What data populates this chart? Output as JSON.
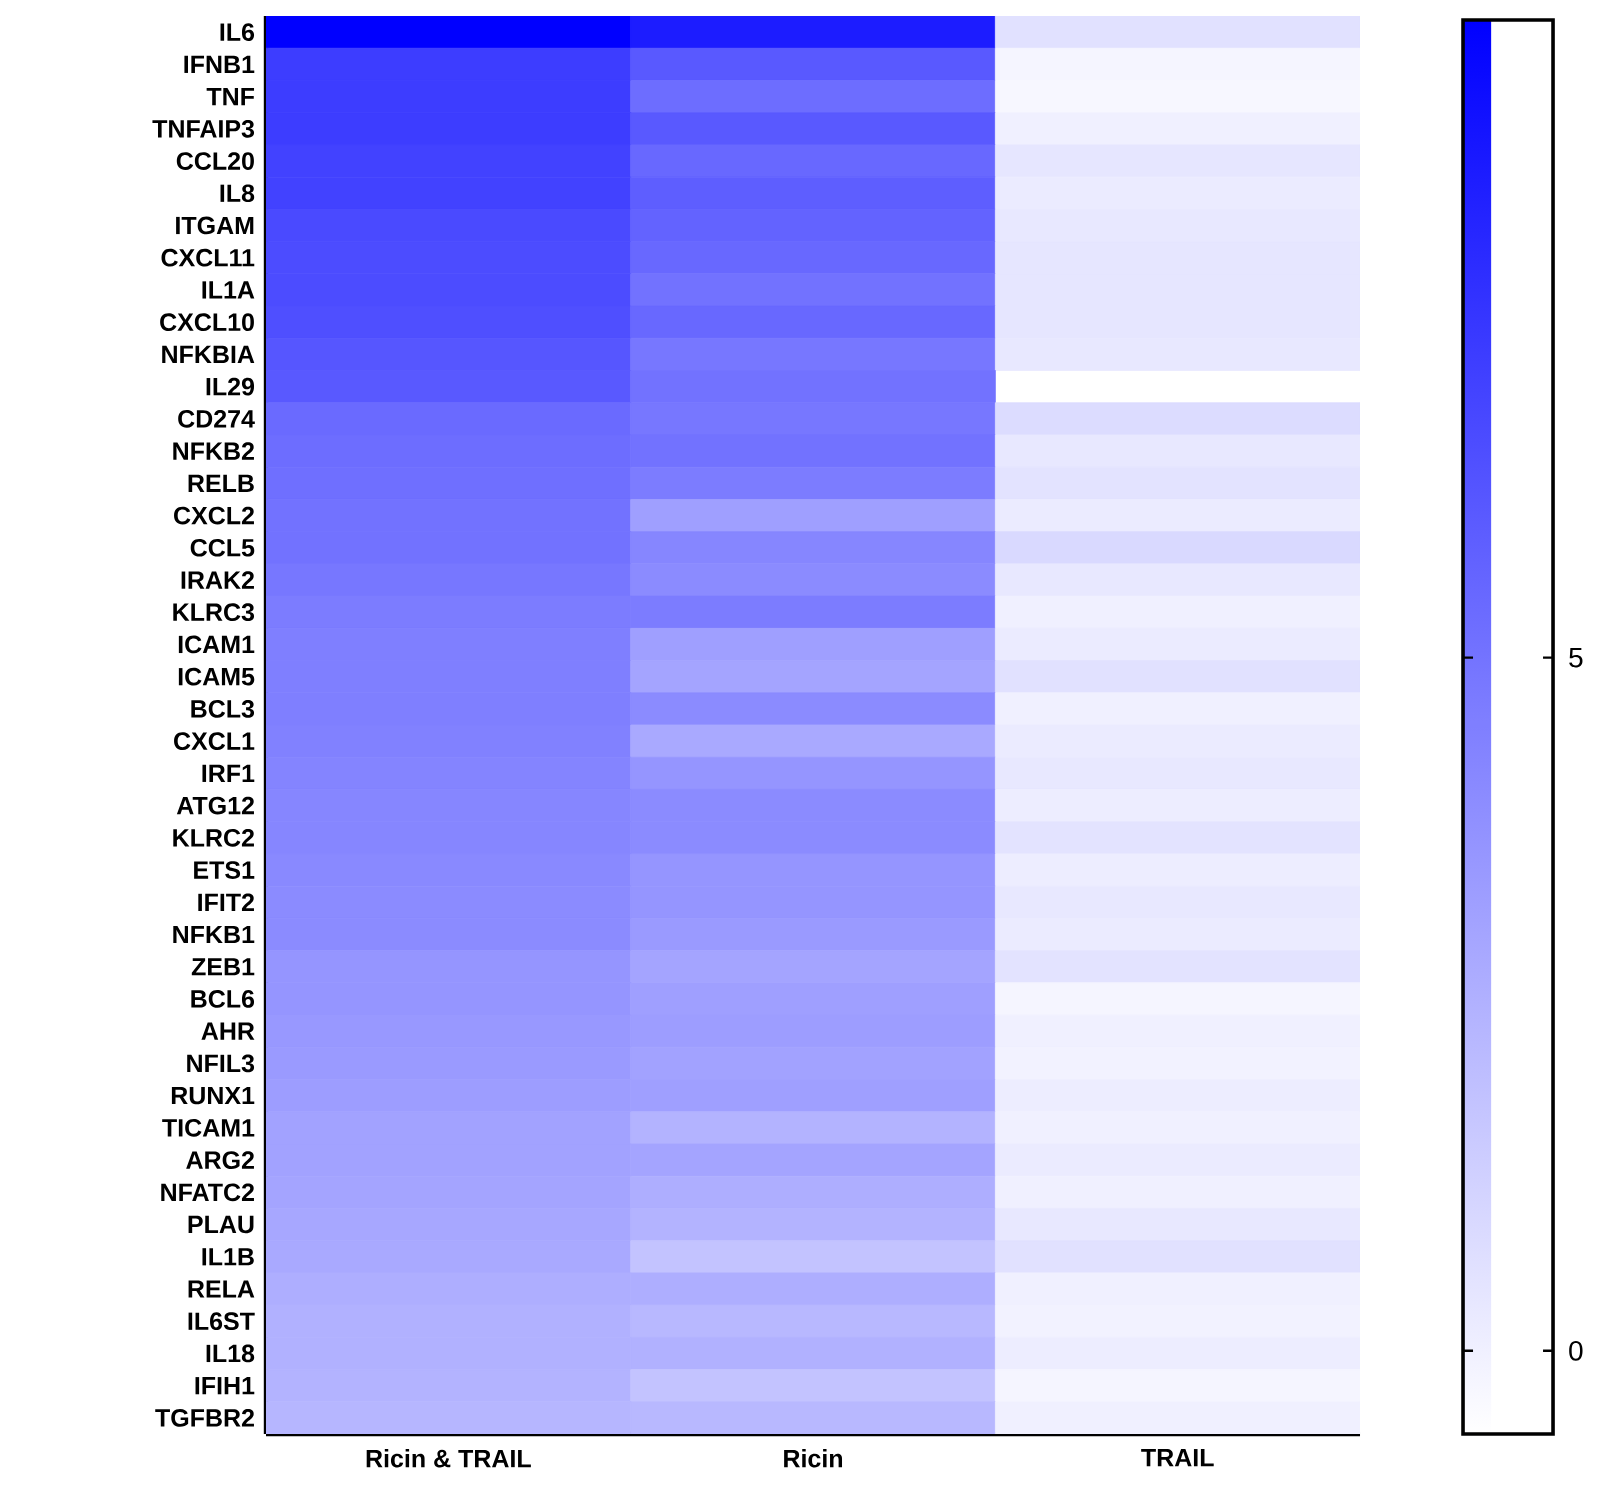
{
  "chart_data": {
    "type": "heatmap",
    "categories": [
      "Ricin & TRAIL",
      "Ricin",
      "TRAIL"
    ],
    "y_categories": [
      "IL6",
      "IFNB1",
      "TNF",
      "TNFAIP3",
      "CCL20",
      "IL8",
      "ITGAM",
      "CXCL11",
      "IL1A",
      "CXCL10",
      "NFKBIA",
      "IL29",
      "CD274",
      "NFKB2",
      "RELB",
      "CXCL2",
      "CCL5",
      "IRAK2",
      "KLRC3",
      "ICAM1",
      "ICAM5",
      "BCL3",
      "CXCL1",
      "IRF1",
      "ATG12",
      "KLRC2",
      "ETS1",
      "IFIT2",
      "NFKB1",
      "ZEB1",
      "BCL6",
      "AHR",
      "NFIL3",
      "RUNX1",
      "TICAM1",
      "ARG2",
      "NFATC2",
      "PLAU",
      "IL1B",
      "RELA",
      "IL6ST",
      "IL18",
      "IFIH1",
      "TGFBR2"
    ],
    "cells": [
      [
        9.6,
        8.4,
        0.6
      ],
      [
        7.1,
        6.0,
        -0.2
      ],
      [
        7.1,
        5.2,
        -0.3
      ],
      [
        7.1,
        6.0,
        0.0
      ],
      [
        6.9,
        5.4,
        0.4
      ],
      [
        6.9,
        5.8,
        0.2
      ],
      [
        6.6,
        5.6,
        0.3
      ],
      [
        6.5,
        5.4,
        0.4
      ],
      [
        6.5,
        5.0,
        0.4
      ],
      [
        6.4,
        5.4,
        0.4
      ],
      [
        6.1,
        4.8,
        0.3
      ],
      [
        6.0,
        5.0,
        null
      ],
      [
        5.3,
        4.8,
        0.8
      ],
      [
        5.2,
        5.0,
        0.3
      ],
      [
        5.1,
        4.6,
        0.5
      ],
      [
        5.0,
        3.2,
        0.2
      ],
      [
        5.0,
        4.2,
        0.9
      ],
      [
        4.8,
        4.0,
        0.3
      ],
      [
        4.6,
        4.6,
        0.0
      ],
      [
        4.5,
        3.2,
        0.2
      ],
      [
        4.5,
        3.0,
        0.6
      ],
      [
        4.5,
        4.0,
        0.0
      ],
      [
        4.4,
        2.8,
        0.2
      ],
      [
        4.3,
        3.6,
        0.3
      ],
      [
        4.2,
        4.0,
        0.1
      ],
      [
        4.2,
        4.0,
        0.5
      ],
      [
        4.1,
        3.6,
        0.1
      ],
      [
        4.0,
        3.6,
        0.3
      ],
      [
        4.0,
        3.4,
        0.2
      ],
      [
        3.6,
        3.0,
        0.5
      ],
      [
        3.6,
        3.2,
        -0.2
      ],
      [
        3.5,
        3.3,
        0.0
      ],
      [
        3.4,
        3.1,
        -0.1
      ],
      [
        3.3,
        3.2,
        0.1
      ],
      [
        3.1,
        2.4,
        0.0
      ],
      [
        3.1,
        3.0,
        0.2
      ],
      [
        3.0,
        2.6,
        0.0
      ],
      [
        2.9,
        2.4,
        0.3
      ],
      [
        2.8,
        1.8,
        0.6
      ],
      [
        2.6,
        2.6,
        0.0
      ],
      [
        2.5,
        2.2,
        -0.1
      ],
      [
        2.5,
        2.5,
        0.1
      ],
      [
        2.4,
        1.8,
        -0.2
      ],
      [
        2.3,
        2.2,
        0.0
      ]
    ],
    "clim": [
      -0.6,
      9.6
    ],
    "cticks": [
      0,
      5
    ]
  }
}
